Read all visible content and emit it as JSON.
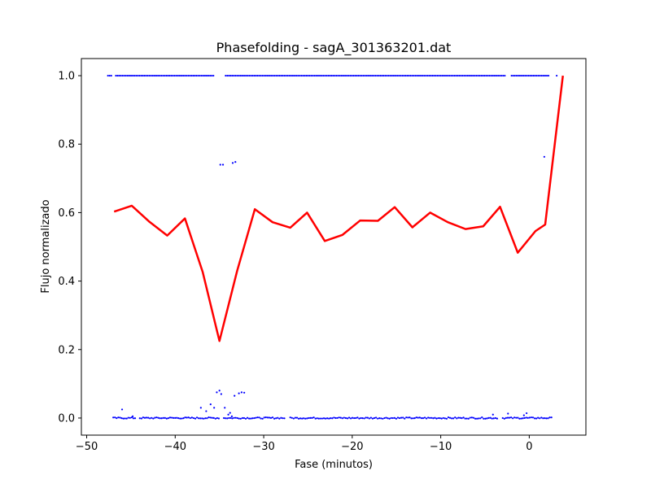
{
  "chart_data": {
    "type": "scatter",
    "title": "Phasefolding - sagA_301363201.dat",
    "xlabel": "Fase (minutos)",
    "ylabel": "Flujo normalizado",
    "xlim": [
      -50.6,
      6.4
    ],
    "ylim": [
      -0.05,
      1.05
    ],
    "xticks": [
      -50,
      -40,
      -30,
      -20,
      -10,
      0
    ],
    "xtick_labels": [
      "−50",
      "−40",
      "−30",
      "−20",
      "−10",
      "0"
    ],
    "yticks": [
      0.0,
      0.2,
      0.4,
      0.6,
      0.8,
      1.0
    ],
    "ytick_labels": [
      "0.0",
      "0.2",
      "0.4",
      "0.6",
      "0.8",
      "1.0"
    ],
    "grid": false,
    "colors": {
      "points": "#0000ff",
      "line": "#ff0000",
      "axes": "#000000"
    },
    "series": [
      {
        "kind": "line",
        "color": "#ff0000",
        "x": [
          -46.9,
          -44.9,
          -42.9,
          -40.9,
          -38.9,
          -36.9,
          -35.0,
          -33.0,
          -31.0,
          -29.0,
          -27.0,
          -25.1,
          -23.1,
          -21.1,
          -19.1,
          -17.1,
          -15.2,
          -13.2,
          -11.2,
          -9.2,
          -7.2,
          -5.2,
          -3.3,
          -1.3,
          0.7,
          1.8,
          3.8
        ],
        "y": [
          0.603,
          0.62,
          0.573,
          0.533,
          0.583,
          0.427,
          0.225,
          0.43,
          0.61,
          0.572,
          0.556,
          0.6,
          0.517,
          0.535,
          0.577,
          0.576,
          0.616,
          0.557,
          0.6,
          0.572,
          0.552,
          0.56,
          0.617,
          0.483,
          0.546,
          0.565,
          1.0
        ]
      },
      {
        "kind": "points",
        "color": "#0000ff",
        "top_band": {
          "y": 1.0,
          "segments": [
            [
              -47.6,
              -47.2
            ],
            [
              -46.7,
              -35.5
            ],
            [
              -34.3,
              -2.7
            ],
            [
              -2.0,
              2.2
            ]
          ],
          "extra_x": [
            3.1
          ]
        },
        "bottom_band": {
          "y": 0.0,
          "segments": [
            [
              -47.0,
              -44.5
            ],
            [
              -44.0,
              -35.0
            ],
            [
              -34.5,
              -27.5
            ],
            [
              -27.0,
              -3.5
            ],
            [
              -3.0,
              2.6
            ]
          ]
        },
        "x": [
          -34.9,
          -34.6,
          -33.5,
          -33.2,
          1.7,
          -46.0,
          -44.8,
          -37.1,
          -36.5,
          -36.0,
          -35.6,
          -35.3,
          -35.0,
          -34.8,
          -34.4,
          -34.0,
          -33.8,
          -33.6,
          -33.3,
          -32.8,
          -32.5,
          -32.2,
          -4.1,
          -2.4,
          -0.6,
          -0.3
        ],
        "y": [
          0.74,
          0.74,
          0.745,
          0.748,
          0.763,
          0.025,
          0.005,
          0.03,
          0.02,
          0.04,
          0.03,
          0.075,
          0.08,
          0.07,
          0.03,
          0.01,
          0.015,
          0.005,
          0.065,
          0.072,
          0.075,
          0.074,
          0.01,
          0.013,
          0.008,
          0.014
        ]
      }
    ]
  }
}
